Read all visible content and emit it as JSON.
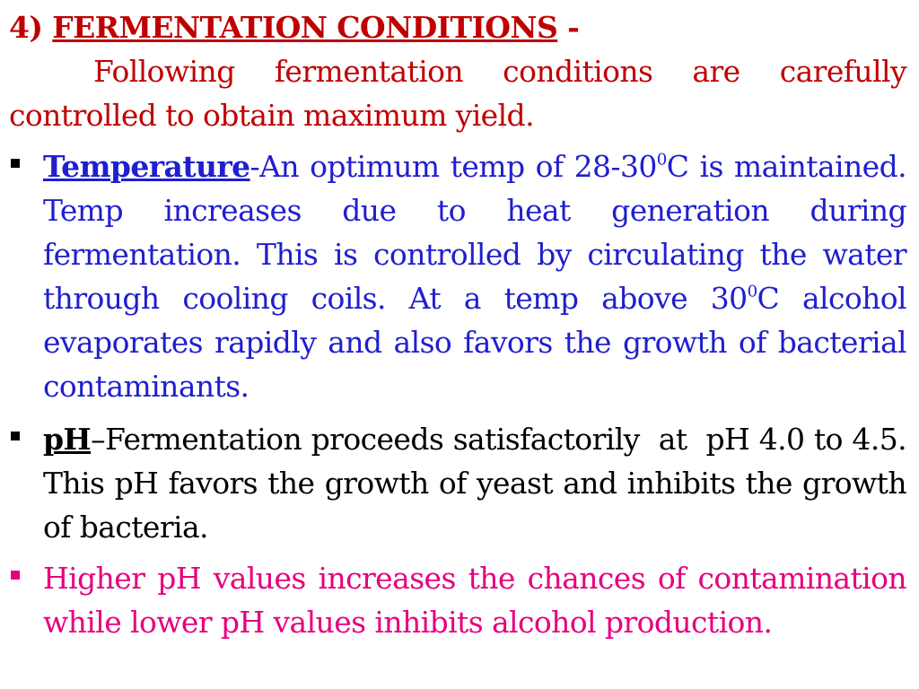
{
  "heading": {
    "number": "4) ",
    "title": "FERMENTATION CONDITIONS",
    "suffix": " -"
  },
  "intro": "Following fermentation conditions are carefully controlled to obtain maximum yield.",
  "bullets": {
    "temperature": {
      "term": "Temperature",
      "text_a": "-An optimum temp of 28-30",
      "sup_a": "0",
      "text_b": "C is maintained. Temp increases due to heat generation during fermentation. This is controlled by circulating the water through cooling coils. At a temp above 30",
      "sup_b": "0",
      "text_c": "C alcohol evaporates rapidly and also favors the growth of bacterial contaminants."
    },
    "ph": {
      "term": "pH",
      "text": "–Fermentation proceeds satisfactorily  at  pH 4.0 to 4.5. This pH favors the growth of yeast and inhibits the growth of bacteria."
    },
    "higher_ph": {
      "text": "Higher pH values increases the chances of contamination while lower pH values inhibits alcohol production."
    }
  },
  "colors": {
    "heading": "#c00000",
    "temperature_text": "#1f1fcf",
    "ph_text": "#000000",
    "highlight_text": "#e6007e"
  }
}
